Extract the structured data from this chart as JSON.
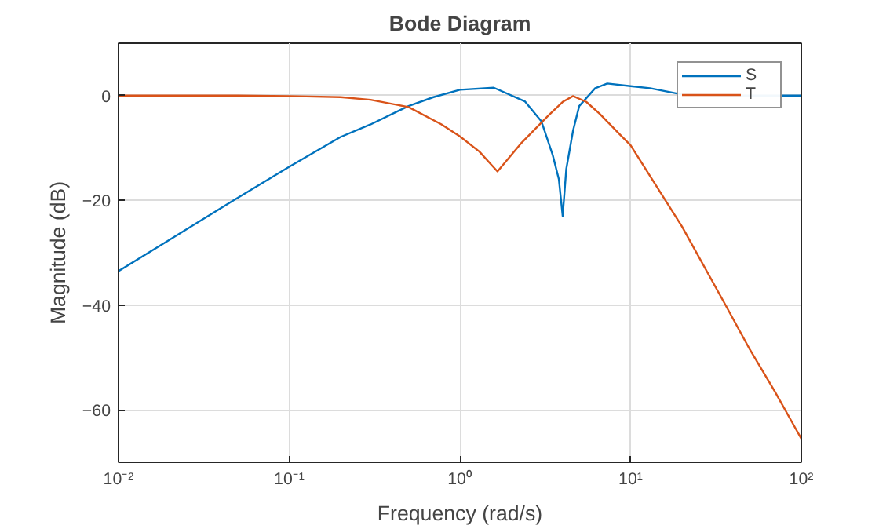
{
  "chart_data": {
    "type": "line",
    "title": "Bode Diagram",
    "xlabel": "Frequency (rad/s)",
    "ylabel": "Magnitude (dB)",
    "log": "x",
    "xlim": [
      0.01,
      100
    ],
    "xticks": [
      {
        "value": 0.01,
        "label": "10⁻²"
      },
      {
        "value": 0.1,
        "label": "10⁻¹"
      },
      {
        "value": 1,
        "label": "10⁰"
      },
      {
        "value": 10,
        "label": "10¹"
      },
      {
        "value": 100,
        "label": "10²"
      }
    ],
    "ylim": [
      -70,
      10
    ],
    "yticks": [
      -60,
      -40,
      -20,
      0
    ],
    "grid": true,
    "legend": "top right",
    "line_style": "solid",
    "marker": "none",
    "series": [
      {
        "name": "S",
        "color": "#0072bd",
        "x": [
          0.01,
          0.02,
          0.05,
          0.1,
          0.2,
          0.3,
          0.5,
          0.7,
          1,
          1.58,
          2.4,
          3.0,
          3.5,
          3.8,
          4.0,
          4.2,
          4.6,
          5.0,
          6.2,
          7.3,
          10,
          13,
          20,
          40,
          90,
          100
        ],
        "values": [
          -33.5,
          -27.5,
          -19.5,
          -13.6,
          -7.9,
          -5.5,
          -2,
          -0.3,
          1.1,
          1.5,
          -1.1,
          -4.9,
          -11.4,
          -16,
          -23,
          -14,
          -6.7,
          -2,
          1.4,
          2.3,
          1.8,
          1.4,
          0.2,
          null,
          0,
          0
        ]
      },
      {
        "name": "T",
        "color": "#d95319",
        "x": [
          0.01,
          0.05,
          0.1,
          0.2,
          0.3,
          0.5,
          0.78,
          1,
          1.3,
          1.66,
          2.3,
          3.3,
          4.0,
          4.6,
          5.5,
          6.6,
          8.7,
          10,
          20,
          36,
          50,
          70,
          100
        ],
        "values": [
          0,
          0,
          -0.1,
          -0.3,
          -0.8,
          -2.2,
          -5.5,
          -7.8,
          -10.7,
          -14.5,
          -9,
          -3.8,
          -1.2,
          -0.1,
          -1.2,
          -3.5,
          -7.5,
          -9.5,
          -25,
          -40,
          -48.5,
          -56.5,
          -65.5
        ]
      }
    ]
  }
}
